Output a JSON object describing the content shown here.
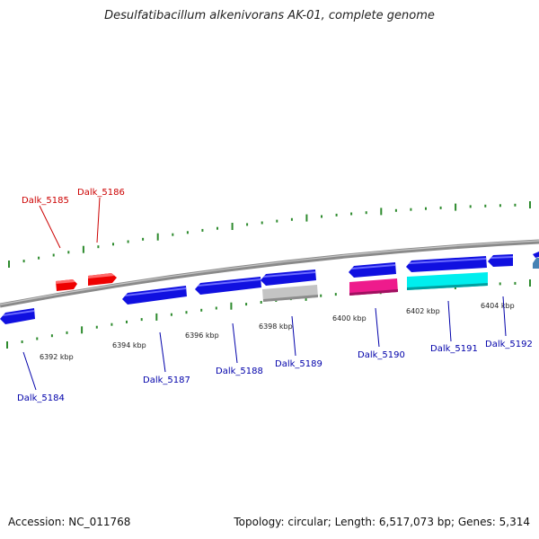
{
  "title": "Desulfatibacillum alkenivorans AK-01, complete genome",
  "footer": {
    "accession": "Accession: NC_011768",
    "stats": "Topology: circular; Length: 6,517,073 bp; Genes: 5,314"
  },
  "colors": {
    "backbone": "#8a8a8a",
    "tick": "#2e8b2e",
    "forward_label": "#cc0000",
    "reverse_label": "#0000aa",
    "scale_text": "#222222"
  },
  "scale_labels": [
    {
      "text": "6392 kbp",
      "kbp": 6392
    },
    {
      "text": "6394 kbp",
      "kbp": 6394
    },
    {
      "text": "6396 kbp",
      "kbp": 6396
    },
    {
      "text": "6398 kbp",
      "kbp": 6398
    },
    {
      "text": "6400 kbp",
      "kbp": 6400
    },
    {
      "text": "6402 kbp",
      "kbp": 6402
    },
    {
      "text": "6404 kbp",
      "kbp": 6404
    }
  ],
  "genes": [
    {
      "label": "Dalk_5184",
      "strand": "reverse",
      "color": "#1010e0",
      "labeled": true
    },
    {
      "label": "",
      "strand": "forward",
      "color": "#ee0000",
      "labeled": false
    },
    {
      "label": "",
      "strand": "forward",
      "color": "#ee0000",
      "labeled": false
    },
    {
      "label": "Dalk_5187",
      "strand": "reverse",
      "color": "#1010e0",
      "labeled": true
    },
    {
      "label": "Dalk_5188",
      "strand": "reverse",
      "color": "#1010e0",
      "labeled": true
    },
    {
      "label": "Dalk_5189",
      "strand": "reverse",
      "color": "#1010e0",
      "labeled": true
    },
    {
      "label": "",
      "strand": "reverse",
      "color": "#c4c4c4",
      "labeled": false
    },
    {
      "label": "Dalk_5190",
      "strand": "reverse",
      "color": "#1010e0",
      "labeled": true
    },
    {
      "label": "",
      "strand": "reverse",
      "color": "#ee1b8c",
      "labeled": false
    },
    {
      "label": "Dalk_5191",
      "strand": "reverse",
      "color": "#1010e0",
      "labeled": true
    },
    {
      "label": "",
      "strand": "reverse",
      "color": "#00eeee",
      "labeled": false
    },
    {
      "label": "Dalk_5192",
      "strand": "reverse",
      "color": "#1010e0",
      "labeled": true
    },
    {
      "label": "",
      "strand": "reverse",
      "color": "#4682b4",
      "labeled": false
    }
  ],
  "forward_labels": [
    {
      "text": "Dalk_5185"
    },
    {
      "text": "Dalk_5186"
    }
  ]
}
